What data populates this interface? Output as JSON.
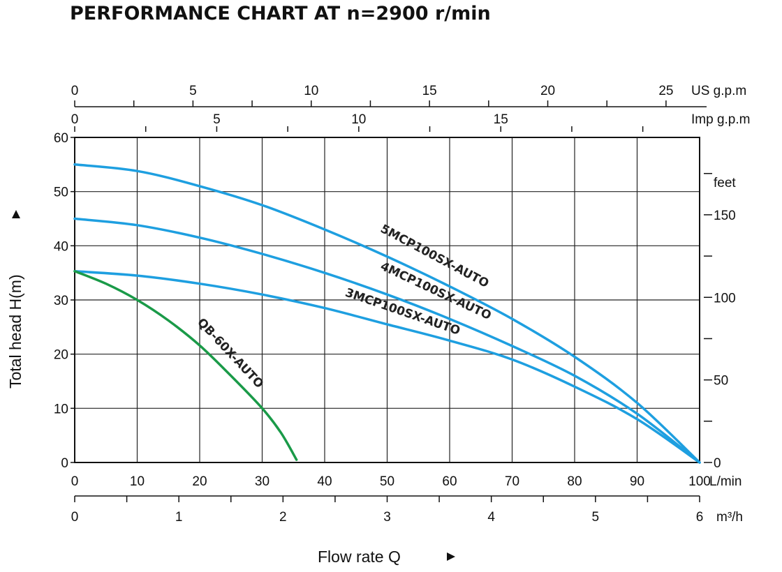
{
  "chart_data": {
    "type": "line",
    "title": "PERFORMANCE CHART AT n=2900 r/min",
    "xlabel": "Flow rate Q",
    "ylabel": "Total head H(m)",
    "x_unit": "L/min",
    "x_ticks": [
      "0",
      "10",
      "20",
      "30",
      "40",
      "50",
      "60",
      "70",
      "80",
      "90",
      "100"
    ],
    "xlim": [
      0,
      100
    ],
    "ylim": [
      0,
      60
    ],
    "y_ticks": [
      "0",
      "10",
      "20",
      "30",
      "40",
      "50",
      "60"
    ],
    "grid": true,
    "secondary_axes": {
      "m3h": {
        "unit": "m³/h",
        "ticks": [
          "0",
          "1",
          "2",
          "3",
          "4",
          "5",
          "6"
        ],
        "values": [
          0,
          1,
          2,
          3,
          4,
          5,
          6
        ],
        "max": 6
      },
      "usgpm": {
        "unit": "US g.p.m",
        "ticks": [
          "0",
          "5",
          "10",
          "15",
          "20",
          "25"
        ],
        "values": [
          0,
          5,
          10,
          15,
          20,
          25
        ],
        "max": 26.42
      },
      "impgpm": {
        "unit": "Imp g.p.m",
        "ticks": [
          "0",
          "5",
          "10",
          "15"
        ],
        "values": [
          0,
          5,
          10,
          15
        ],
        "max": 22
      },
      "feet": {
        "unit": "feet",
        "ticks": [
          "150",
          "100",
          "50",
          "0"
        ],
        "values": [
          150,
          100,
          50,
          0
        ],
        "per_m": 3.2808
      }
    },
    "series": [
      {
        "name": "5MCP100SX-AUTO",
        "color": "#1e9fe0",
        "x": [
          0,
          10,
          20,
          30,
          40,
          50,
          60,
          70,
          80,
          90,
          100
        ],
        "y": [
          55,
          53.8,
          51,
          47.5,
          43,
          38,
          32.5,
          26.5,
          19.5,
          11,
          0
        ]
      },
      {
        "name": "4MCP100SX-AUTO",
        "color": "#1e9fe0",
        "x": [
          0,
          10,
          20,
          30,
          40,
          50,
          60,
          70,
          80,
          90,
          100
        ],
        "y": [
          45,
          43.8,
          41.5,
          38.5,
          35,
          31,
          26.5,
          21.5,
          16,
          9,
          0
        ]
      },
      {
        "name": "3MCP100SX-AUTO",
        "color": "#1e9fe0",
        "x": [
          0,
          10,
          20,
          30,
          40,
          50,
          60,
          70,
          80,
          90,
          100
        ],
        "y": [
          35.3,
          34.5,
          33,
          31,
          28.5,
          25.5,
          22.5,
          19,
          14,
          8,
          0
        ]
      },
      {
        "name": "QB-60X-AUTO",
        "color": "#1a9a48",
        "x": [
          0,
          5,
          10,
          15,
          20,
          25,
          30,
          33,
          35.5
        ],
        "y": [
          35.3,
          33,
          30,
          26.2,
          21.6,
          16,
          10,
          5.5,
          0.5
        ]
      }
    ]
  }
}
